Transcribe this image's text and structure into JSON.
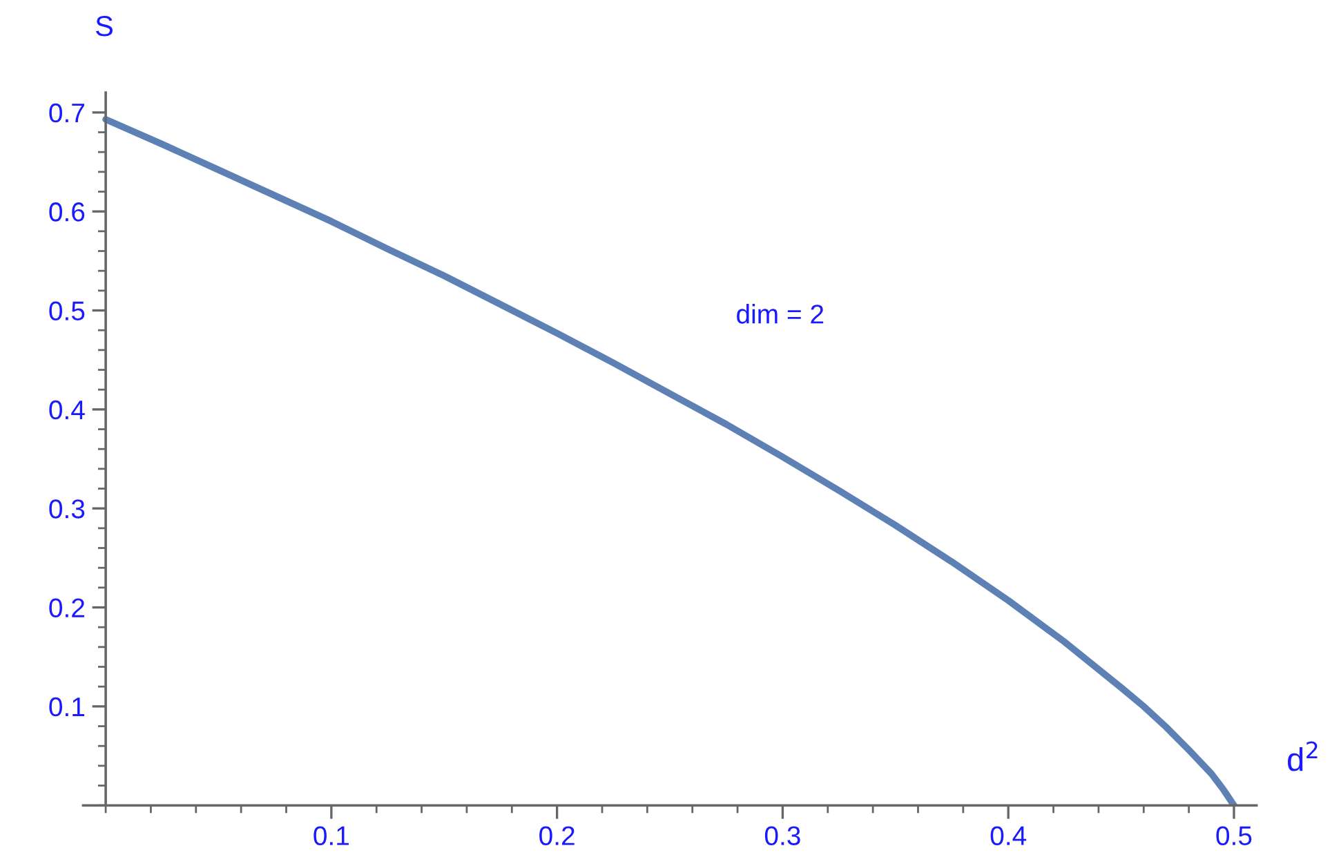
{
  "chart_data": {
    "type": "line",
    "xlabel": "d$^{2}$",
    "ylabel": "S",
    "annotations": [
      "dim = 2"
    ],
    "x": [
      0,
      0.025,
      0.05,
      0.075,
      0.1,
      0.125,
      0.15,
      0.175,
      0.2,
      0.225,
      0.25,
      0.275,
      0.3,
      0.325,
      0.35,
      0.375,
      0.4,
      0.425,
      0.45,
      0.46,
      0.47,
      0.48,
      0.49,
      0.495,
      0.5
    ],
    "series": [
      {
        "color": "#5e81b5",
        "values": [
          0.693,
          0.668,
          0.642,
          0.616,
          0.59,
          0.562,
          0.535,
          0.506,
          0.477,
          0.447,
          0.416,
          0.385,
          0.352,
          0.318,
          0.283,
          0.246,
          0.207,
          0.165,
          0.119,
          0.1,
          0.079,
          0.056,
          0.032,
          0.017,
          0
        ]
      }
    ],
    "xlim": [
      -0.01,
      0.51
    ],
    "ylim": [
      0,
      0.72
    ],
    "xticks": [
      0.1,
      0.2,
      0.3,
      0.4,
      0.5
    ],
    "yticks": [
      0.1,
      0.2,
      0.3,
      0.4,
      0.5,
      0.6,
      0.7
    ],
    "marker": "none",
    "line_style": "solid",
    "grid": false,
    "legend": false
  }
}
